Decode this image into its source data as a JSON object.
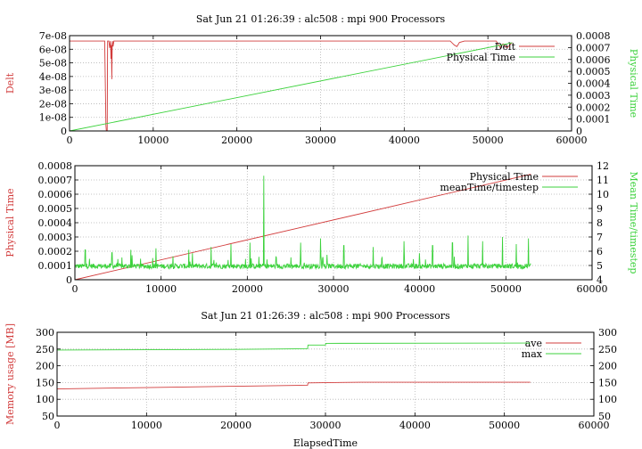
{
  "chart_data": [
    {
      "type": "line",
      "title": "Sat Jun 21 01:26:39 : alc508 : mpi 900 Processors",
      "xlabel": "",
      "ylabel": "Delt",
      "y2label": "Physical Time",
      "xlim": [
        0,
        60000
      ],
      "ylim": [
        0,
        7e-08
      ],
      "y2lim": [
        0,
        0.0008
      ],
      "xticks": [
        "0",
        "10000",
        "20000",
        "30000",
        "40000",
        "50000",
        "60000"
      ],
      "yticks": [
        "0",
        "1e-08",
        "2e-08",
        "3e-08",
        "4e-08",
        "5e-08",
        "6e-08",
        "7e-08"
      ],
      "y2ticks": [
        "0",
        "0.0001",
        "0.0002",
        "0.0003",
        "0.0004",
        "0.0005",
        "0.0006",
        "0.0007",
        "0.0008"
      ],
      "grid": true,
      "legend_position": "top-right",
      "series": [
        {
          "name": "Delt",
          "axis": "left",
          "color": "#d23c3c",
          "x": [
            0,
            4200,
            4350,
            4400,
            4500,
            4550,
            4700,
            4800,
            4900,
            4950,
            5000,
            5050,
            5100,
            5150,
            5200,
            5300,
            5500,
            8000,
            20000,
            30000,
            40000,
            45500,
            46000,
            46300,
            46600,
            47200,
            50000,
            51000,
            51300,
            51500,
            51800,
            52300,
            52900
          ],
          "y": [
            6.6e-08,
            6.6e-08,
            4e-09,
            0,
            0,
            6.6e-08,
            6.6e-08,
            6.1e-08,
            6.6e-08,
            5.3e-08,
            6.3e-08,
            3.8e-08,
            6.3e-08,
            6.6e-08,
            6.2e-08,
            6.6e-08,
            6.6e-08,
            6.6e-08,
            6.6e-08,
            6.6e-08,
            6.6e-08,
            6.6e-08,
            6.3e-08,
            6.2e-08,
            6.5e-08,
            6.6e-08,
            6.6e-08,
            6.6e-08,
            6.3e-08,
            6.1e-08,
            6.4e-08,
            6.1e-08,
            6.5e-08
          ]
        },
        {
          "name": "Physical Time",
          "axis": "right",
          "color": "#3cd23c",
          "x": [
            0,
            52900
          ],
          "y": [
            0,
            0.00074
          ]
        }
      ]
    },
    {
      "type": "line",
      "title": "",
      "xlabel": "",
      "ylabel": "Physical Time",
      "y2label": "Mean Time/timestep",
      "xlim": [
        0,
        60000
      ],
      "ylim": [
        0,
        0.0008
      ],
      "y2lim": [
        4,
        12
      ],
      "xticks": [
        "0",
        "10000",
        "20000",
        "30000",
        "40000",
        "50000",
        "60000"
      ],
      "yticks": [
        "0",
        "0.0001",
        "0.0002",
        "0.0003",
        "0.0004",
        "0.0005",
        "0.0006",
        "0.0007",
        "0.0008"
      ],
      "y2ticks": [
        "4",
        "5",
        "6",
        "7",
        "8",
        "9",
        "10",
        "11",
        "12"
      ],
      "grid": true,
      "legend_position": "top-right",
      "series": [
        {
          "name": "Physical Time",
          "axis": "left",
          "color": "#d23c3c",
          "x": [
            0,
            52900
          ],
          "y": [
            0,
            0.00074
          ]
        },
        {
          "name": "meanTime/timestep",
          "axis": "right",
          "color": "#3cd23c",
          "x_range": [
            0,
            52900
          ],
          "baseline": 4.9,
          "noise": 0.35,
          "spikes": [
            [
              1200,
              6.1
            ],
            [
              4300,
              5.9
            ],
            [
              6500,
              6.1
            ],
            [
              9400,
              6.2
            ],
            [
              13200,
              6.1
            ],
            [
              15800,
              6.3
            ],
            [
              18100,
              6.5
            ],
            [
              20300,
              6.6
            ],
            [
              21900,
              11.3
            ],
            [
              26200,
              6.6
            ],
            [
              28500,
              6.9
            ],
            [
              31200,
              6.4
            ],
            [
              34600,
              6.3
            ],
            [
              38200,
              6.7
            ],
            [
              41500,
              6.4
            ],
            [
              43800,
              6.6
            ],
            [
              45600,
              7.1
            ],
            [
              47300,
              6.7
            ],
            [
              49600,
              7.0
            ],
            [
              51200,
              6.5
            ],
            [
              52600,
              6.9
            ]
          ]
        }
      ]
    },
    {
      "type": "line",
      "title": "Sat Jun 21 01:26:39 : alc508 : mpi 900 Processors",
      "xlabel": "ElapsedTime",
      "ylabel": "Memory usage [MB]",
      "y2label": "",
      "xlim": [
        0,
        60000
      ],
      "ylim": [
        50,
        300
      ],
      "y2lim": [
        50,
        300
      ],
      "xticks": [
        "0",
        "10000",
        "20000",
        "30000",
        "40000",
        "50000",
        "60000"
      ],
      "yticks": [
        "50",
        "100",
        "150",
        "200",
        "250",
        "300"
      ],
      "y2ticks": [
        "50",
        "100",
        "150",
        "200",
        "250",
        "300"
      ],
      "grid": true,
      "legend_position": "top-right",
      "series": [
        {
          "name": "ave",
          "axis": "left",
          "color": "#d23c3c",
          "x": [
            0,
            10000,
            20000,
            28000,
            28050,
            34000,
            52900
          ],
          "y": [
            131,
            135,
            139,
            142,
            149,
            151,
            151
          ]
        },
        {
          "name": "max",
          "axis": "left",
          "color": "#3cd23c",
          "x": [
            0,
            10000,
            20000,
            28000,
            28050,
            30000,
            30050,
            52900
          ],
          "y": [
            247,
            248,
            249,
            251,
            262,
            262,
            267,
            268
          ]
        }
      ]
    }
  ]
}
